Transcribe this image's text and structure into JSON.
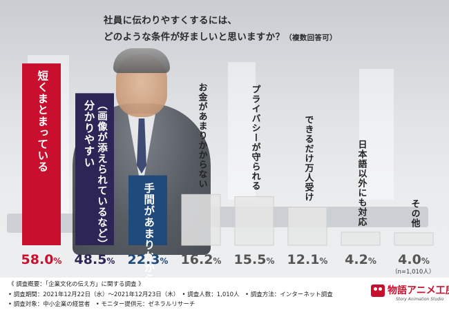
{
  "title": {
    "line1": "社員に伝わりやすくするには、",
    "line2": "どのような条件が好ましいと思いますか？",
    "note": "（複数回答可）"
  },
  "chart_data": {
    "type": "bar",
    "title": "社員に伝わりやすくするには、どのような条件が好ましいと思いますか？（複数回答可）",
    "unit": "%",
    "ylim": [
      0,
      60
    ],
    "categories": [
      "短くまとまっている",
      "分かりやすい（画像が添えられているなど）",
      "手間があまりかからない",
      "お金があまりかからない",
      "プライバシーが守られる",
      "できるだけ万人受け",
      "日本語以外にも対応",
      "その他"
    ],
    "values": [
      58.0,
      48.5,
      22.3,
      16.2,
      15.5,
      12.1,
      4.2,
      4.0
    ],
    "value_labels": [
      "58.0",
      "48.5",
      "22.3",
      "16.2",
      "15.5",
      "12.1",
      "4.2",
      "4.0"
    ],
    "value_unit": "%",
    "bar_colors": [
      "#c8102e",
      "#2e2557",
      "#1f4a7a",
      "#e6e6e6",
      "#e6e6e6",
      "#e6e6e6",
      "#e6e6e6",
      "#e6e6e6"
    ],
    "value_colors": [
      "#c8102e",
      "#2e2557",
      "#1f4a7a",
      "#555555",
      "#555555",
      "#555555",
      "#555555",
      "#555555"
    ],
    "label_colors": [
      "#ffffff",
      "#ffffff",
      "#ffffff",
      "#222222",
      "#222222",
      "#222222",
      "#222222",
      "#222222"
    ],
    "label_lines": [
      [
        "短くまとまっている"
      ],
      [
        "（画像が添えられているなど）",
        "分かりやすい"
      ],
      [
        "手間があまりかからない"
      ],
      [
        "お金があまりかからない"
      ],
      [
        "プライバシーが守られる"
      ],
      [
        "できるだけ万人受け"
      ],
      [
        "日本語以外にも対応"
      ],
      [
        "その他"
      ]
    ],
    "sample_note": "（n=1,010人）"
  },
  "footer": {
    "line1": "《 調査概要：「企業文化の伝え方」に関する調査 》",
    "line2": "• 調査期間：2021年12月22日（水）〜2021年12月23日（木）　• 調査人数：1,010人　• 調査方法：インターネット調査",
    "line3": "• 調査対象：中小企業の経営者　• モニター提供元：ゼネラルリサーチ"
  },
  "logo": {
    "text": "物語アニメ工房",
    "sub": "Story Animation Studio"
  }
}
